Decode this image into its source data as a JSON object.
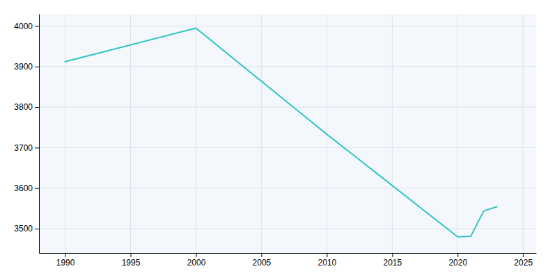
{
  "chart_data": {
    "type": "line",
    "x": [
      1990,
      2000,
      2010,
      2020,
      2021,
      2022,
      2023
    ],
    "values": [
      3912,
      3995,
      3733,
      3480,
      3481,
      3544,
      3554
    ],
    "color": "#2ec4c4",
    "xlim": [
      1988,
      2026
    ],
    "ylim": [
      3440,
      4030
    ],
    "xticks": [
      1990,
      1995,
      2000,
      2005,
      2010,
      2015,
      2020,
      2025
    ],
    "yticks": [
      3500,
      3600,
      3700,
      3800,
      3900,
      4000
    ],
    "grid": true
  }
}
